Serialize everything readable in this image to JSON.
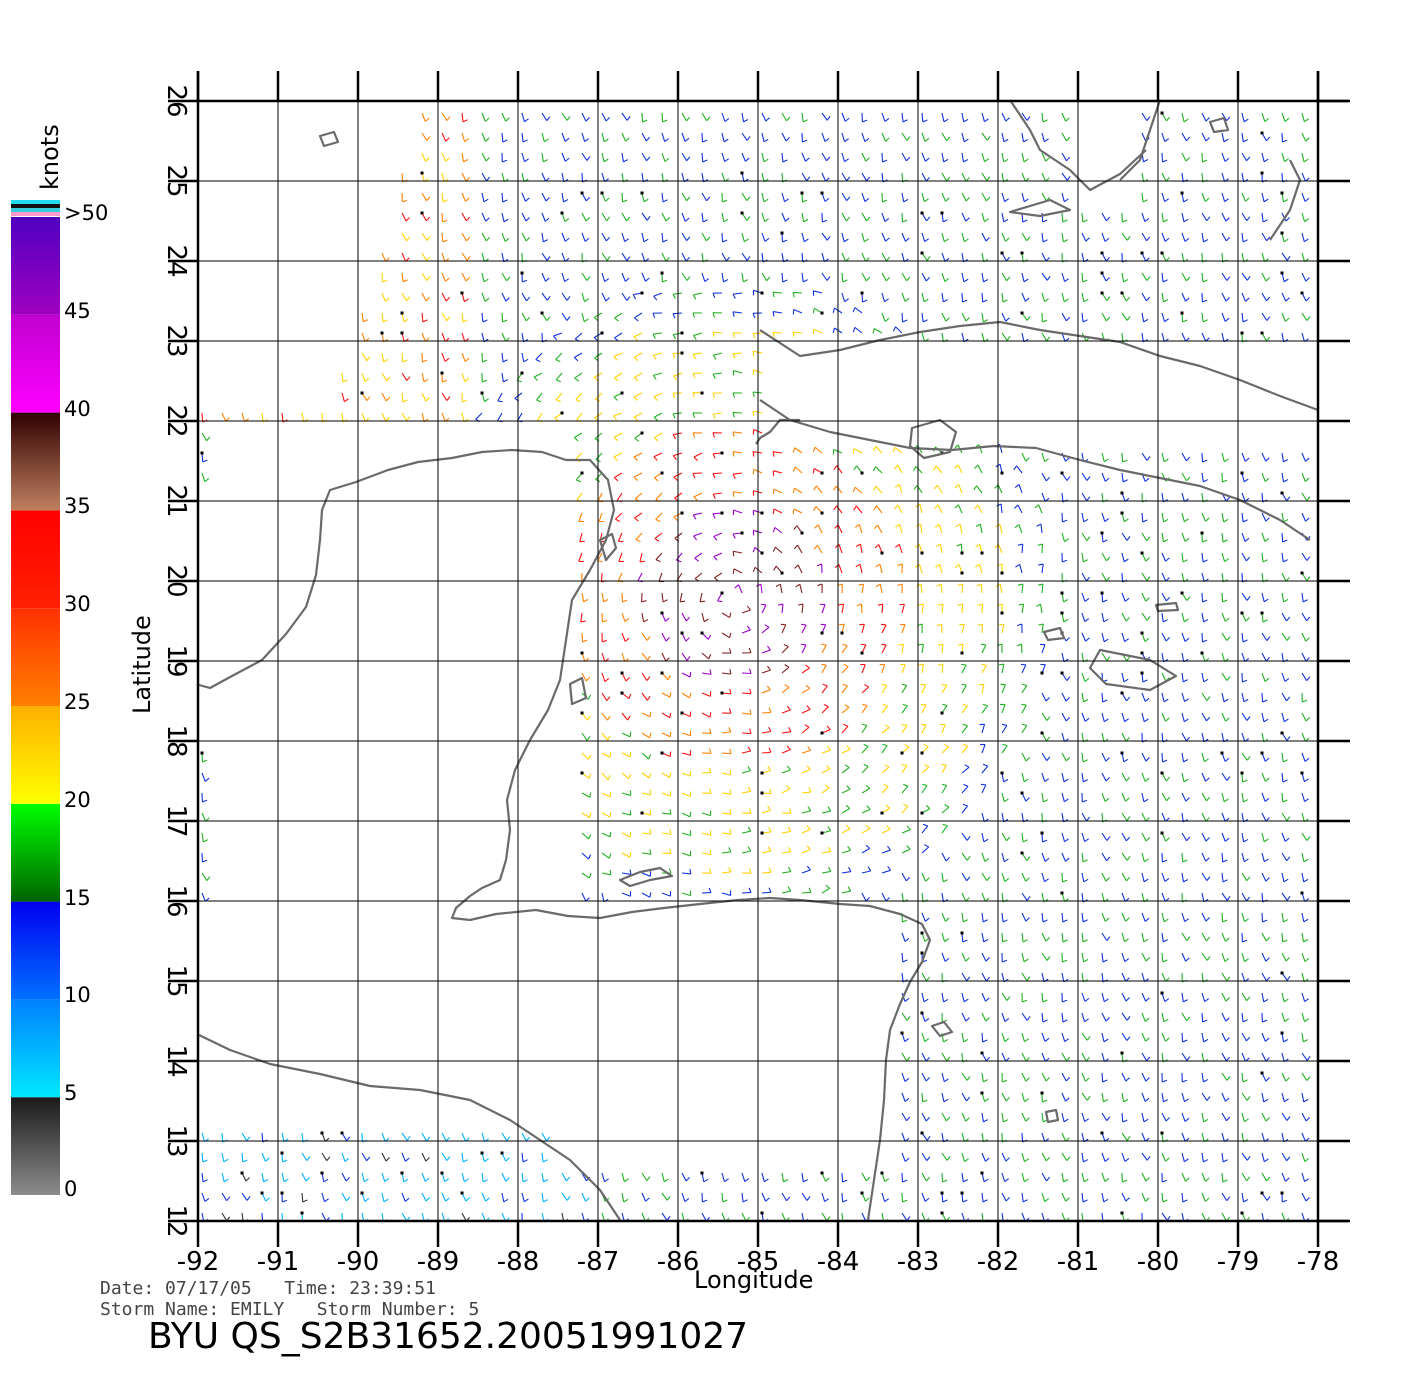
{
  "map": {
    "x_axis_title": "Longitude",
    "y_axis_title": "Latitude",
    "lon_ticks": [
      "-92",
      "-91",
      "-90",
      "-89",
      "-88",
      "-87",
      "-86",
      "-85",
      "-84",
      "-83",
      "-82",
      "-81",
      "-80",
      "-79",
      "-78"
    ],
    "lat_ticks": [
      "12",
      "13",
      "14",
      "15",
      "16",
      "17",
      "18",
      "19",
      "20",
      "21",
      "22",
      "23",
      "24",
      "25",
      "26"
    ],
    "lon_range": [
      -92,
      -78
    ],
    "lat_range": [
      12,
      26
    ],
    "coastline_color": "#6a6a6a"
  },
  "legend": {
    "unit": "knots",
    "labels": [
      "0",
      "5",
      "10",
      "15",
      "20",
      "25",
      "30",
      "35",
      "40",
      "45",
      ">50"
    ],
    "bands": [
      {
        "from": 0,
        "to": 5,
        "colors": [
          "#8c8c8c",
          "#1a1a1a"
        ]
      },
      {
        "from": 5,
        "to": 10,
        "colors": [
          "#00e8ff",
          "#0080ff"
        ]
      },
      {
        "from": 10,
        "to": 15,
        "colors": [
          "#0070ff",
          "#0000f0"
        ]
      },
      {
        "from": 15,
        "to": 20,
        "colors": [
          "#006400",
          "#00ff00"
        ]
      },
      {
        "from": 20,
        "to": 25,
        "colors": [
          "#ffff00",
          "#ffb000"
        ]
      },
      {
        "from": 25,
        "to": 30,
        "colors": [
          "#ff8000",
          "#ff3000"
        ]
      },
      {
        "from": 30,
        "to": 35,
        "colors": [
          "#ff2000",
          "#ff0000"
        ]
      },
      {
        "from": 35,
        "to": 40,
        "colors": [
          "#c08060",
          "#300000"
        ]
      },
      {
        "from": 40,
        "to": 45,
        "colors": [
          "#ff00ff",
          "#c000d0"
        ]
      },
      {
        "from": 45,
        "to": 50,
        "colors": [
          "#a000c0",
          "#5000c0"
        ]
      }
    ]
  },
  "footer": {
    "date_line": "Date: 07/17/05   Time: 23:39:51",
    "storm_line": "Storm Name: EMILY   Storm Number: 5",
    "product": "BYU QS_S2B31652.20051991027"
  }
}
